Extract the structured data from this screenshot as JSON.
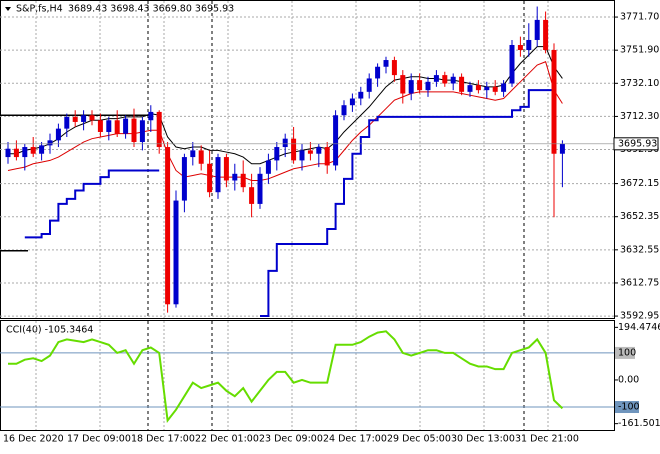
{
  "chart_data": {
    "type": "candlestick",
    "header": {
      "symbol": "S&P,fs,H4",
      "quote": "3689.43 3698.43 3669.80 3695.93"
    },
    "up_color": "#0000cc",
    "down_color": "#ee0000",
    "ylim": [
      3591.8,
      3781.3
    ],
    "yticks": [
      {
        "value": 3771.7,
        "label": "3771.70"
      },
      {
        "value": 3751.9,
        "label": "3751.90"
      },
      {
        "value": 3732.1,
        "label": "3732.10"
      },
      {
        "value": 3712.3,
        "label": "3712.30"
      },
      {
        "value": 3692.5,
        "label": "3692.50"
      },
      {
        "value": 3672.15,
        "label": "3672.15"
      },
      {
        "value": 3652.35,
        "label": "3652.35"
      },
      {
        "value": 3632.55,
        "label": "3632.55"
      },
      {
        "value": 3612.75,
        "label": "3612.75"
      },
      {
        "value": 3592.95,
        "label": "3592.95"
      }
    ],
    "last_price": {
      "value": 3695.93,
      "label": "3695.93"
    },
    "x_labels": [
      "16 Dec 2020",
      "17 Dec 09:00",
      "18 Dec 17:00",
      "22 Dec 01:00",
      "23 Dec 09:00",
      "24 Dec 17:00",
      "29 Dec 05:00",
      "30 Dec 13:00",
      "31 Dec 21:00"
    ],
    "levels": [
      3713,
      3632
    ],
    "open": [
      3688,
      3693,
      3688,
      3694,
      3690,
      3695,
      3698,
      3705,
      3712,
      3709,
      3713,
      3710,
      3703,
      3710,
      3702,
      3711,
      3697,
      3710,
      3715,
      3694,
      3600,
      3662,
      3688,
      3692,
      3684,
      3667,
      3688,
      3674,
      3678,
      3670,
      3660,
      3678,
      3686,
      3694,
      3699,
      3686,
      3692,
      3690,
      3694,
      3683,
      3713,
      3719,
      3723,
      3727,
      3735,
      3742,
      3746,
      3737,
      3726,
      3734,
      3728,
      3733,
      3737,
      3732,
      3736,
      3727,
      3731,
      3728,
      3730,
      3727,
      3732,
      3755,
      3752,
      3758,
      3770,
      3752,
      3690
    ],
    "high": [
      3697,
      3698,
      3696,
      3700,
      3697,
      3702,
      3708,
      3714,
      3716,
      3716,
      3716,
      3714,
      3712,
      3716,
      3713,
      3717,
      3712,
      3719,
      3716,
      3697,
      3668,
      3690,
      3697,
      3695,
      3692,
      3690,
      3690,
      3684,
      3686,
      3678,
      3682,
      3690,
      3697,
      3702,
      3706,
      3696,
      3697,
      3696,
      3697,
      3716,
      3722,
      3726,
      3730,
      3738,
      3744,
      3748,
      3748,
      3740,
      3738,
      3738,
      3736,
      3740,
      3739,
      3738,
      3738,
      3733,
      3734,
      3733,
      3734,
      3734,
      3758,
      3760,
      3768,
      3778,
      3775,
      3756,
      3698
    ],
    "low": [
      3684,
      3686,
      3680,
      3688,
      3686,
      3690,
      3694,
      3700,
      3706,
      3704,
      3707,
      3700,
      3698,
      3700,
      3699,
      3694,
      3692,
      3703,
      3690,
      3595,
      3598,
      3655,
      3683,
      3680,
      3664,
      3663,
      3670,
      3668,
      3667,
      3652,
      3657,
      3672,
      3680,
      3688,
      3684,
      3680,
      3686,
      3682,
      3678,
      3680,
      3710,
      3715,
      3719,
      3723,
      3730,
      3738,
      3733,
      3720,
      3722,
      3726,
      3724,
      3730,
      3730,
      3728,
      3725,
      3724,
      3726,
      3723,
      3725,
      3724,
      3730,
      3748,
      3748,
      3754,
      3750,
      3652,
      3670
    ],
    "close": [
      3693,
      3688,
      3694,
      3690,
      3695,
      3698,
      3705,
      3712,
      3709,
      3713,
      3710,
      3703,
      3710,
      3702,
      3711,
      3697,
      3710,
      3715,
      3694,
      3600,
      3662,
      3688,
      3692,
      3684,
      3667,
      3688,
      3674,
      3678,
      3670,
      3660,
      3678,
      3686,
      3694,
      3699,
      3686,
      3692,
      3690,
      3694,
      3683,
      3713,
      3719,
      3723,
      3727,
      3735,
      3742,
      3746,
      3737,
      3726,
      3734,
      3728,
      3733,
      3737,
      3732,
      3736,
      3727,
      3731,
      3728,
      3730,
      3727,
      3732,
      3755,
      3752,
      3758,
      3770,
      3752,
      3690,
      3696
    ],
    "lines": [
      {
        "color": "#000000",
        "values": [
          3690,
          3690,
          3692,
          3693,
          3694,
          3696,
          3699,
          3703,
          3706,
          3708,
          3710,
          3710,
          3711,
          3711,
          3712,
          3712,
          3712,
          3714,
          3713,
          3700,
          3694,
          3693,
          3694,
          3694,
          3692,
          3692,
          3691,
          3690,
          3688,
          3684,
          3684,
          3686,
          3688,
          3690,
          3691,
          3692,
          3693,
          3694,
          3693,
          3697,
          3703,
          3708,
          3713,
          3718,
          3724,
          3730,
          3734,
          3735,
          3736,
          3736,
          3735,
          3735,
          3734,
          3734,
          3733,
          3732,
          3731,
          3730,
          3730,
          3731,
          3738,
          3744,
          3749,
          3754,
          3754,
          3742,
          3735
        ]
      },
      {
        "color": "#dd0000",
        "values": [
          3680,
          3681,
          3682,
          3684,
          3685,
          3686,
          3688,
          3691,
          3694,
          3697,
          3699,
          3700,
          3701,
          3702,
          3702,
          3702,
          3703,
          3704,
          3704,
          3690,
          3680,
          3676,
          3677,
          3678,
          3677,
          3676,
          3676,
          3676,
          3676,
          3674,
          3674,
          3675,
          3677,
          3679,
          3681,
          3682,
          3683,
          3684,
          3684,
          3686,
          3692,
          3698,
          3703,
          3707,
          3712,
          3717,
          3722,
          3724,
          3726,
          3727,
          3727,
          3727,
          3727,
          3727,
          3726,
          3725,
          3724,
          3723,
          3722,
          3723,
          3728,
          3733,
          3738,
          3743,
          3745,
          3728,
          3720
        ]
      },
      {
        "color": "#0000cc",
        "step": true,
        "values": [
          null,
          null,
          3640,
          3640,
          3642,
          3650,
          3660,
          3663,
          3668,
          3672,
          3672,
          3676,
          3680,
          3680,
          3680,
          3680,
          3680,
          3680,
          3680,
          null,
          null,
          null,
          null,
          null,
          null,
          null,
          null,
          null,
          null,
          null,
          3593,
          3620,
          3636,
          3636,
          3636,
          3636,
          3636,
          3636,
          3645,
          3660,
          3675,
          3690,
          3700,
          3710,
          3712,
          3712,
          3712,
          3712,
          3712,
          3712,
          3712,
          3712,
          3712,
          3712,
          3712,
          3712,
          3712,
          3712,
          3712,
          3712,
          3716,
          3718,
          3728,
          3728,
          3728,
          3700,
          null
        ]
      }
    ],
    "cci": {
      "label": "CCI(40) -105.3464",
      "color": "#66dd00",
      "level_color": "#6f95bd",
      "ylim": [
        -185,
        218
      ],
      "levels": [
        100,
        -100
      ],
      "yticks": [
        194.4746,
        100,
        {
          "value": 0,
          "label": "0.00"
        },
        -100,
        -161.5014
      ],
      "values": [
        60,
        60,
        75,
        80,
        70,
        90,
        140,
        150,
        145,
        140,
        150,
        140,
        130,
        100,
        110,
        60,
        110,
        120,
        100,
        -150,
        -110,
        -60,
        -10,
        -30,
        -20,
        -10,
        -40,
        -60,
        -30,
        -80,
        -40,
        0,
        30,
        30,
        -10,
        0,
        -10,
        -10,
        -10,
        130,
        130,
        130,
        140,
        160,
        175,
        180,
        150,
        100,
        90,
        100,
        110,
        110,
        100,
        100,
        80,
        60,
        50,
        50,
        40,
        40,
        100,
        110,
        120,
        150,
        100,
        -75,
        -105
      ]
    }
  }
}
